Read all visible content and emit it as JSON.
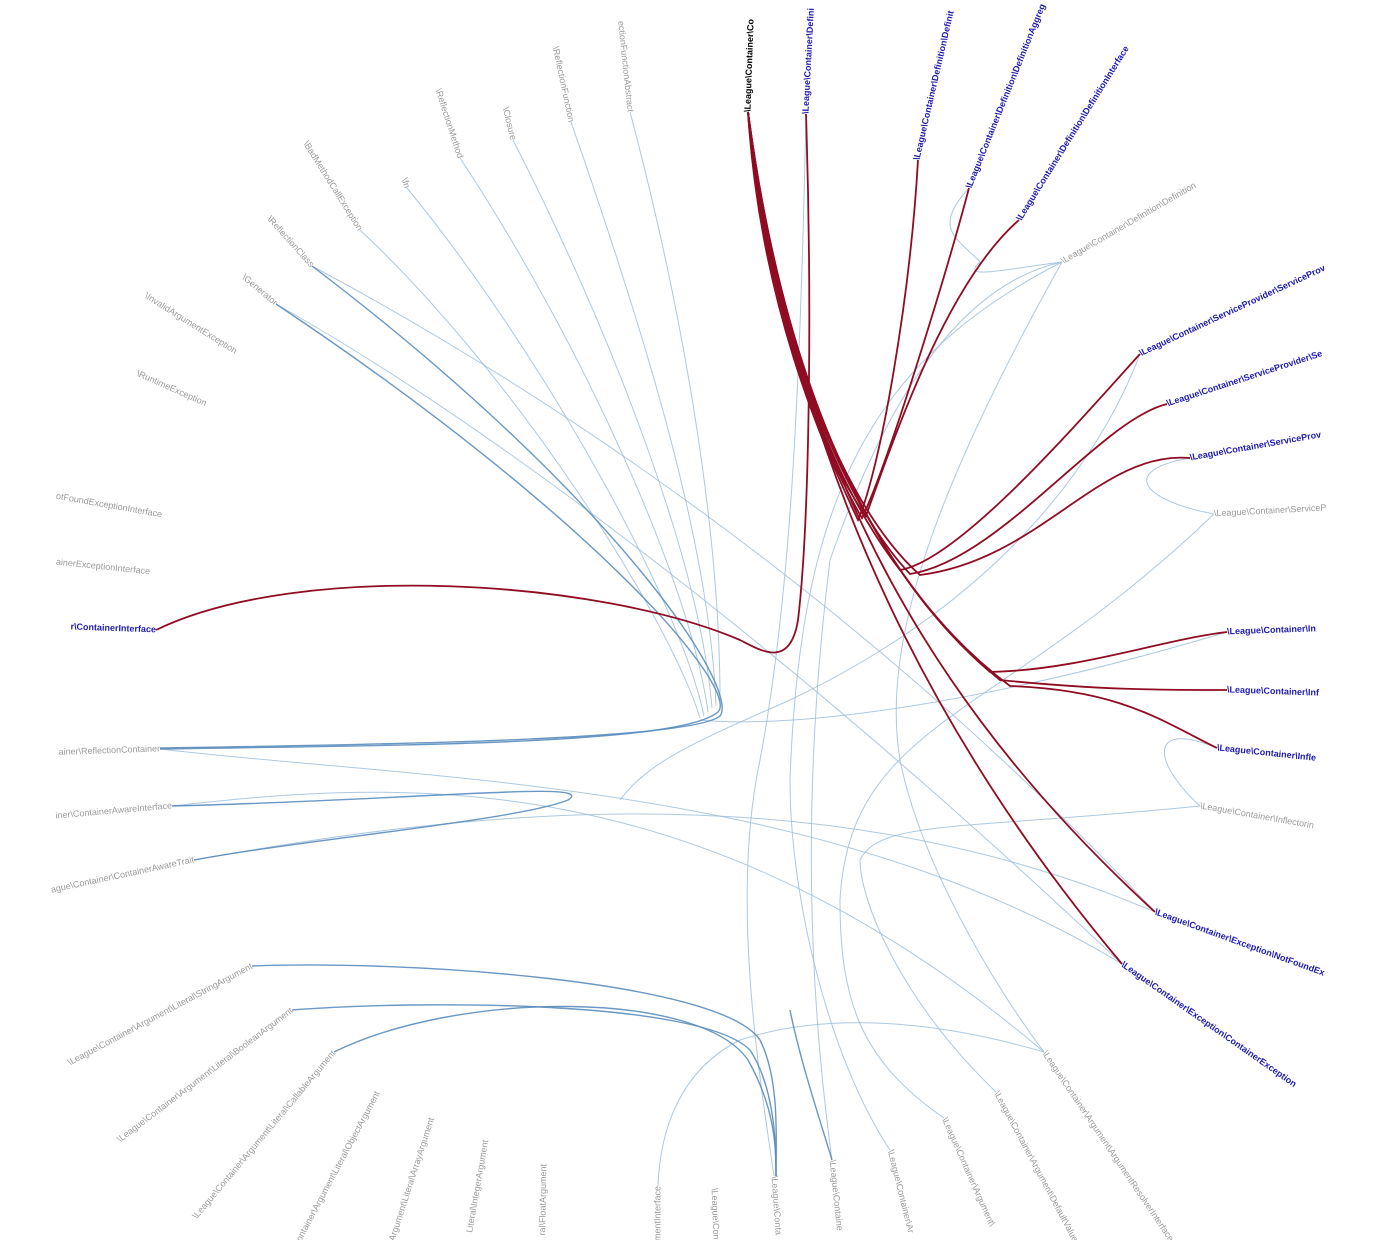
{
  "diagram": {
    "kind": "hierarchical edge bundling",
    "selected": "\\League\\Container\\Co",
    "nodes": [
      {
        "label": "\\League\\Container\\Co",
        "state": "selected"
      },
      {
        "label": "\\League\\Container\\Defini",
        "state": "highlight"
      },
      {
        "label": "\\League\\Container\\Definition\\Definit",
        "state": "highlight"
      },
      {
        "label": "\\League\\Container\\Definition\\DefinitionAggreg",
        "state": "highlight"
      },
      {
        "label": "\\League\\Container\\Definition\\DefinitionInterface",
        "state": "highlight"
      },
      {
        "label": "\\League\\Container\\Definition\\Definition",
        "state": "dim"
      },
      {
        "label": "\\League\\Container\\ServiceProvider\\ServiceProv",
        "state": "highlight"
      },
      {
        "label": "\\League\\Container\\ServiceProvider\\Se",
        "state": "highlight"
      },
      {
        "label": "\\League\\Container\\ServiceProv",
        "state": "highlight"
      },
      {
        "label": "\\League\\Container\\ServiceP",
        "state": "dim"
      },
      {
        "label": "\\League\\Container\\In",
        "state": "highlight"
      },
      {
        "label": "\\League\\Container\\Inf",
        "state": "highlight"
      },
      {
        "label": "\\League\\Container\\Infle",
        "state": "highlight"
      },
      {
        "label": "\\League\\Container\\Inflectorin",
        "state": "dim"
      },
      {
        "label": "\\League\\Container\\Exception\\NotFoundEx",
        "state": "highlight"
      },
      {
        "label": "\\League\\Container\\Exception\\ContainerException",
        "state": "highlight"
      },
      {
        "label": "\\League\\Container\\Argument\\ArgumentResolverInterface",
        "state": "dim"
      },
      {
        "label": "\\League\\Container\\Argument\\DefaultValue",
        "state": "dim"
      },
      {
        "label": "\\League\\Container\\Argument\\",
        "state": "dim"
      },
      {
        "label": "\\League\\Container\\Ar",
        "state": "dim"
      },
      {
        "label": "\\League\\Containe",
        "state": "dim"
      },
      {
        "label": "\\League\\Conta",
        "state": "dim"
      },
      {
        "label": "\\League\\Con",
        "state": "dim"
      },
      {
        "label": "mentInterface",
        "state": "dim"
      },
      {
        "label": "ral\\FloatArgument",
        "state": "dim"
      },
      {
        "label": "Literal\\IntegerArgument",
        "state": "dim"
      },
      {
        "label": "\\Argument\\Literal\\ArrayArgument",
        "state": "dim"
      },
      {
        "label": "\\Container\\Argument\\Literal\\ObjectArgument",
        "state": "dim"
      },
      {
        "label": "\\League\\Container\\Argument\\Literal\\CallableArgument",
        "state": "dim"
      },
      {
        "label": "\\League\\Container\\Argument\\Literal\\BooleanArgument",
        "state": "dim"
      },
      {
        "label": "\\League\\Container\\Argument\\Literal\\StringArgument",
        "state": "dim"
      },
      {
        "label": "ague\\Container\\ContainerAwareTrait",
        "state": "dim"
      },
      {
        "label": "iner\\ContainerAwareInterface",
        "state": "dim"
      },
      {
        "label": "ainer\\ReflectionContainer",
        "state": "dim"
      },
      {
        "label": "r\\ContainerInterface",
        "state": "highlight"
      },
      {
        "label": "ainerExceptionInterface",
        "state": "dim"
      },
      {
        "label": "otFoundExceptionInterface",
        "state": "dim"
      },
      {
        "label": "\\RuntimeException",
        "state": "dim"
      },
      {
        "label": "\\InvalidArgumentException",
        "state": "dim"
      },
      {
        "label": "\\Generator",
        "state": "dim"
      },
      {
        "label": "\\ReflectionClass",
        "state": "dim"
      },
      {
        "label": "\\BadMethodCallException",
        "state": "dim"
      },
      {
        "label": "\\fn",
        "state": "dim"
      },
      {
        "label": "\\ReflectionMethod",
        "state": "dim"
      },
      {
        "label": "\\Closure",
        "state": "dim"
      },
      {
        "label": "\\ReflectionFunction",
        "state": "dim"
      },
      {
        "label": "ectionFunctionAbstract",
        "state": "dim"
      }
    ],
    "colors": {
      "background": "#ffffff",
      "label_dim": "#9a9a9a",
      "label_highlight": "#1f1bb0",
      "label_selected": "#000000",
      "edge_dim": "#9fbfdb",
      "edge_bundle": "#5a8cbc",
      "edge_highlight": "#8f0c22"
    }
  }
}
